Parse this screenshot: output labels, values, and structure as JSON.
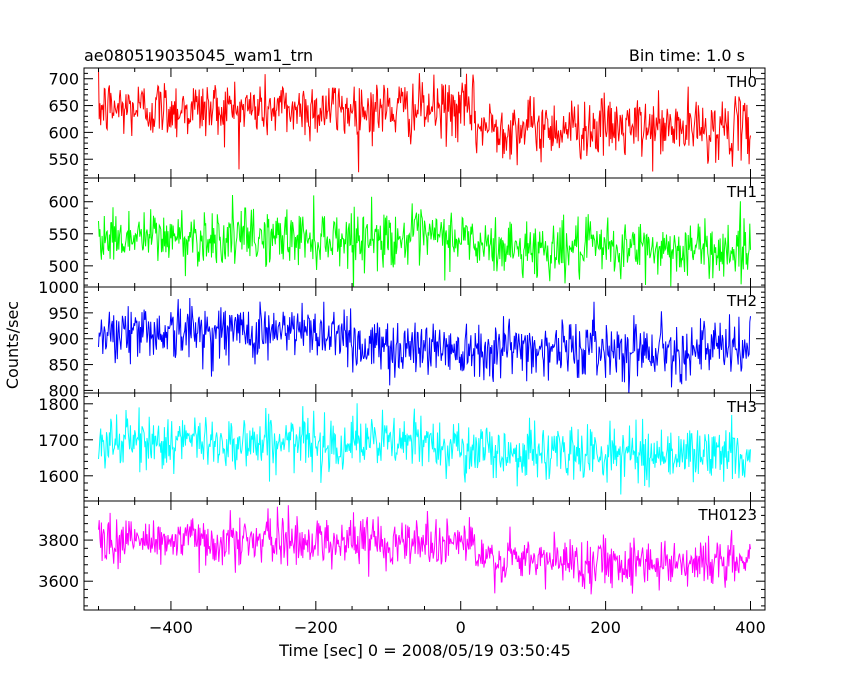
{
  "header": {
    "title": "ae080519035045_wam1_trn",
    "bin_time": "Bin time: 1.0 s"
  },
  "axes": {
    "ylabel": "Counts/sec",
    "xlabel": "Time [sec] 0 = 2008/05/19 03:50:45"
  },
  "colors": {
    "TH0": "#ff0000",
    "TH1": "#00ff00",
    "TH2": "#0000ff",
    "TH3": "#00ffff",
    "TH0123": "#ff00ff"
  },
  "chart_data": {
    "type": "line",
    "x_range": [
      -520,
      420
    ],
    "x_ticks": [
      -400,
      -200,
      0,
      200,
      400
    ],
    "x_tick_labels": [
      "−400",
      "−200",
      "0",
      "200",
      "400"
    ],
    "bin_time_s": 1.0,
    "panels": [
      {
        "name": "TH0",
        "color": "#ff0000",
        "ylim": [
          515,
          720
        ],
        "yticks": [
          550,
          600,
          650,
          700
        ],
        "ytick_labels": [
          "550",
          "600",
          "650",
          "700"
        ],
        "level_before": 645,
        "level_after": 610,
        "step_at": 20,
        "noise_sd": 28,
        "key_points": [
          [
            -500,
            640
          ],
          [
            -300,
            645
          ],
          [
            -100,
            640
          ],
          [
            0,
            632
          ],
          [
            100,
            612
          ],
          [
            300,
            608
          ],
          [
            400,
            605
          ]
        ]
      },
      {
        "name": "TH1",
        "color": "#00ff00",
        "ylim": [
          467,
          637
        ],
        "yticks": [
          500,
          550,
          600
        ],
        "ytick_labels": [
          "500",
          "550",
          "600"
        ],
        "level_before": 545,
        "level_after": 528,
        "step_at": 20,
        "noise_sd": 22,
        "key_points": [
          [
            -500,
            540
          ],
          [
            -300,
            545
          ],
          [
            -100,
            545
          ],
          [
            0,
            540
          ],
          [
            100,
            528
          ],
          [
            300,
            528
          ],
          [
            400,
            525
          ]
        ]
      },
      {
        "name": "TH2",
        "color": "#0000ff",
        "ylim": [
          795,
          1000
        ],
        "yticks": [
          800,
          850,
          900,
          950,
          1000
        ],
        "ytick_labels": [
          "800",
          "850",
          "900",
          "950",
          "1000"
        ],
        "level_before": 915,
        "level_after": 885,
        "step_at": -150,
        "noise_sd": 28,
        "key_points": [
          [
            -500,
            920
          ],
          [
            -300,
            915
          ],
          [
            -150,
            905
          ],
          [
            0,
            895
          ],
          [
            200,
            885
          ],
          [
            400,
            880
          ]
        ]
      },
      {
        "name": "TH3",
        "color": "#00ffff",
        "ylim": [
          1530,
          1830
        ],
        "yticks": [
          1600,
          1700,
          1800
        ],
        "ytick_labels": [
          "1600",
          "1700",
          "1800"
        ],
        "level_before": 1695,
        "level_after": 1665,
        "step_at": 0,
        "noise_sd": 38,
        "key_points": [
          [
            -500,
            1700
          ],
          [
            -300,
            1695
          ],
          [
            -100,
            1690
          ],
          [
            0,
            1675
          ],
          [
            200,
            1665
          ],
          [
            400,
            1655
          ]
        ]
      },
      {
        "name": "TH0123",
        "color": "#ff00ff",
        "ylim": [
          3460,
          3990
        ],
        "yticks": [
          3600,
          3800
        ],
        "ytick_labels": [
          "3600",
          "3800"
        ],
        "level_before": 3800,
        "level_after": 3700,
        "step_at": 20,
        "noise_sd": 60,
        "key_points": [
          [
            -500,
            3810
          ],
          [
            -300,
            3800
          ],
          [
            -100,
            3780
          ],
          [
            0,
            3760
          ],
          [
            100,
            3700
          ],
          [
            300,
            3690
          ],
          [
            400,
            3680
          ]
        ]
      }
    ]
  }
}
